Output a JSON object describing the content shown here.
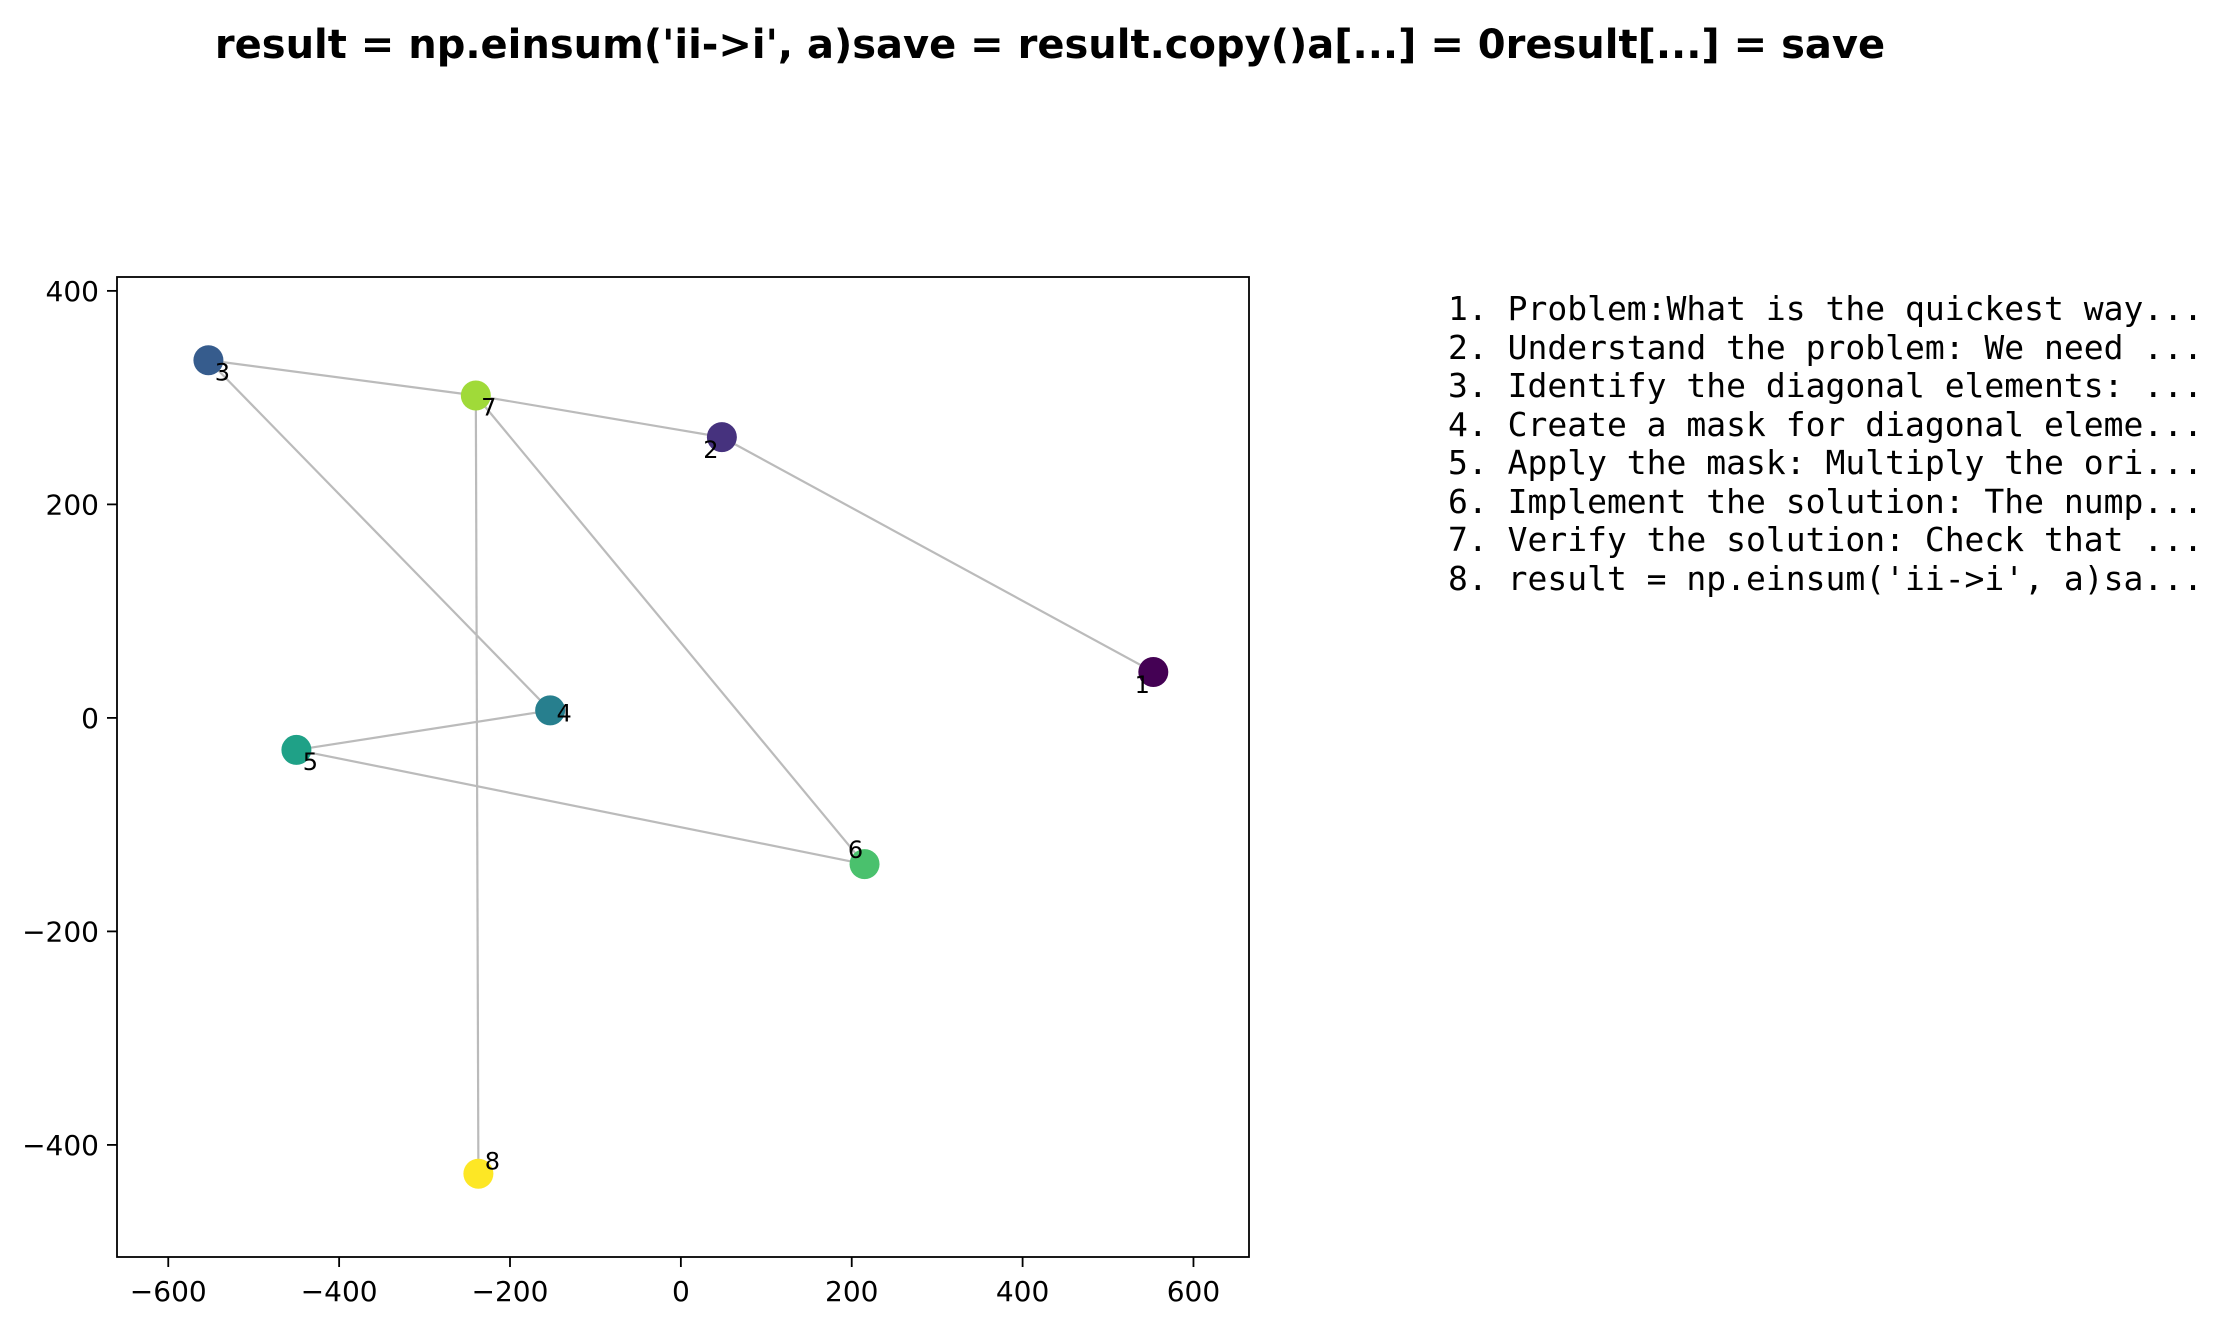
{
  "chart_data": {
    "type": "scatter",
    "title": "result = np.einsum('ii->i', a)save = result.copy()a[...] = 0result[...] = save",
    "xlabel": "",
    "ylabel": "",
    "xlim": [
      -660,
      665
    ],
    "ylim": [
      -505,
      413
    ],
    "xticks": [
      -600,
      -400,
      -200,
      0,
      200,
      400,
      600
    ],
    "yticks": [
      -400,
      -200,
      0,
      200,
      400
    ],
    "xtick_labels": [
      "−600",
      "−400",
      "−200",
      "0",
      "200",
      "400",
      "600"
    ],
    "ytick_labels": [
      "−400",
      "−200",
      "0",
      "200",
      "400"
    ],
    "grid": false,
    "colormap": "viridis",
    "line_color": "#bbbbbb",
    "points": [
      {
        "label": "1",
        "x": 553,
        "y": 43,
        "color": "#440154"
      },
      {
        "label": "2",
        "x": 48,
        "y": 263,
        "color": "#46327e"
      },
      {
        "label": "3",
        "x": -553,
        "y": 335,
        "color": "#365c8d"
      },
      {
        "label": "4",
        "x": -153,
        "y": 7,
        "color": "#277f8e"
      },
      {
        "label": "5",
        "x": -450,
        "y": -30,
        "color": "#1fa187"
      },
      {
        "label": "6",
        "x": 215,
        "y": -137,
        "color": "#4ac16d"
      },
      {
        "label": "7",
        "x": -240,
        "y": 302,
        "color": "#a0da39"
      },
      {
        "label": "8",
        "x": -237,
        "y": -427,
        "color": "#fde725"
      }
    ],
    "edges": [
      [
        1,
        2
      ],
      [
        2,
        7
      ],
      [
        7,
        3
      ],
      [
        3,
        4
      ],
      [
        4,
        5
      ],
      [
        5,
        6
      ],
      [
        6,
        7
      ],
      [
        7,
        8
      ]
    ],
    "steps": [
      "1. Problem:What is the quickest way...",
      "2. Understand the problem: We need ...",
      "3. Identify the diagonal elements: ...",
      "4. Create a mask for diagonal eleme...",
      "5. Apply the mask: Multiply the ori...",
      "6. Implement the solution: The nump...",
      "7. Verify the solution: Check that ...",
      "8. result = np.einsum('ii->i', a)sa..."
    ]
  }
}
